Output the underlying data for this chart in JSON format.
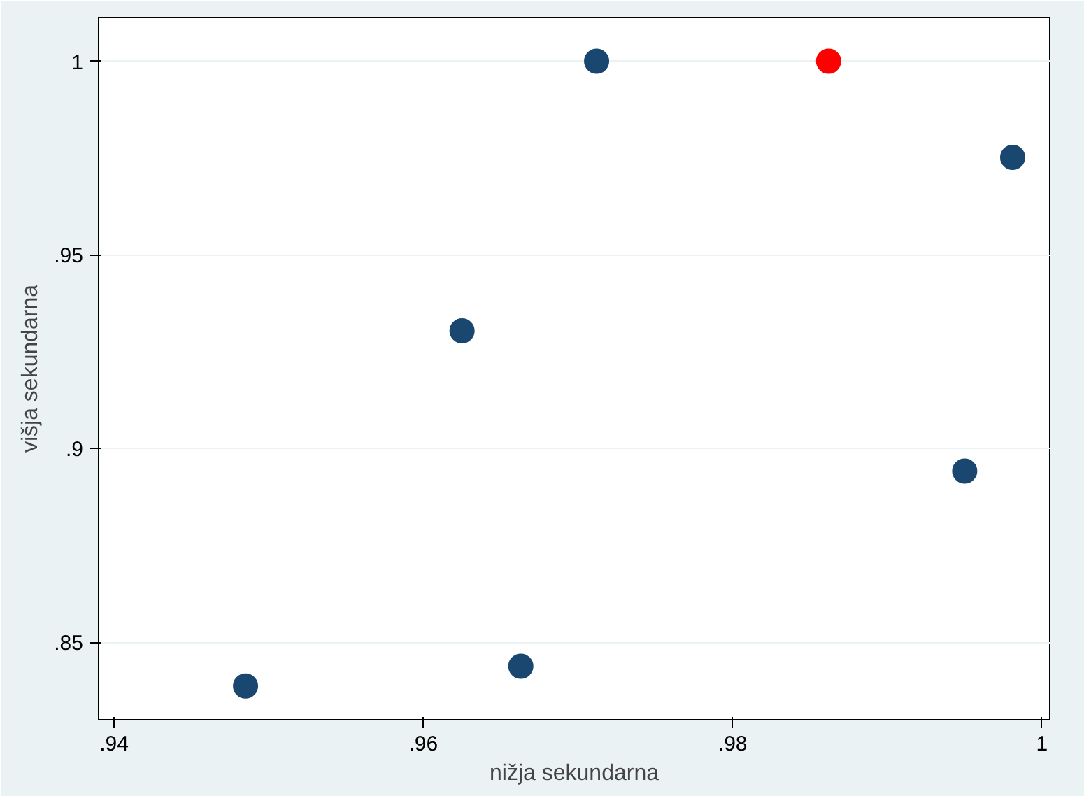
{
  "chart_data": {
    "type": "scatter",
    "xlabel": "nižja sekundarna",
    "ylabel": "višja sekundarna",
    "xlim": [
      0.939,
      1.0005
    ],
    "ylim": [
      0.83,
      1.0113
    ],
    "xticks": [
      {
        "value": 0.94,
        "label": ".94"
      },
      {
        "value": 0.96,
        "label": ".96"
      },
      {
        "value": 0.98,
        "label": ".98"
      },
      1
    ],
    "yticks": [
      {
        "value": 0.85,
        "label": ".85"
      },
      {
        "value": 0.9,
        "label": ".9"
      },
      {
        "value": 0.95,
        "label": ".95"
      },
      1
    ],
    "grid": "y",
    "marker": "circle",
    "series": [
      {
        "color": "#1a476f",
        "x": [
          0.9485,
          0.9625,
          0.9663,
          0.9712,
          0.995,
          0.9981
        ],
        "values": [
          0.8387,
          0.9304,
          0.8438,
          1.0,
          0.8942,
          0.9752
        ]
      },
      {
        "color": "#ff0000",
        "x": [
          0.9862
        ],
        "values": [
          1.0
        ]
      }
    ]
  }
}
